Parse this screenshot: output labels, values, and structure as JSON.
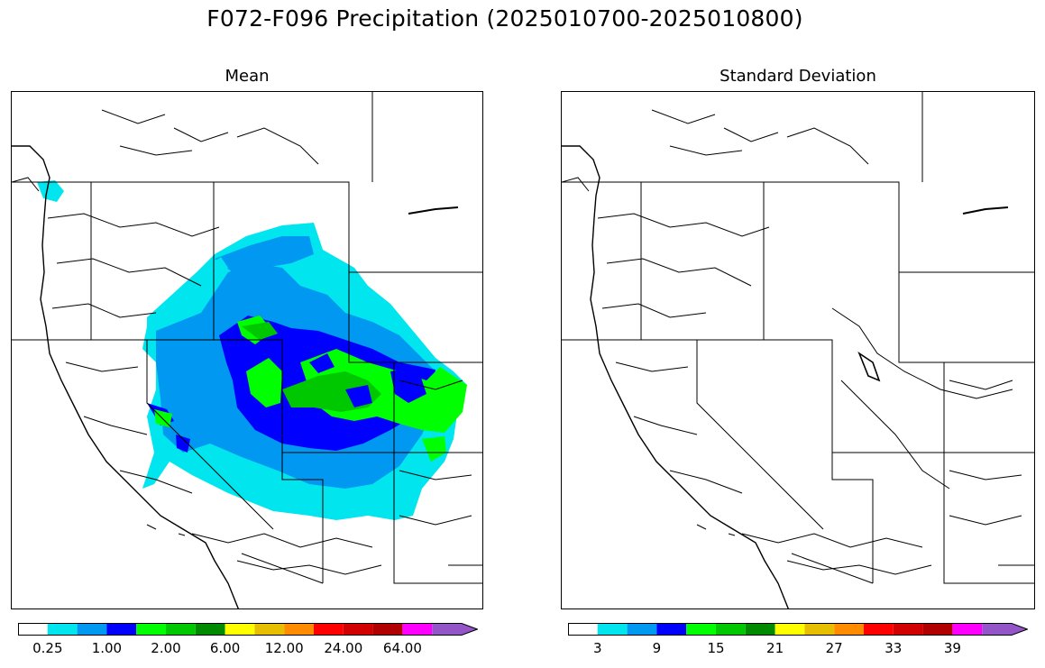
{
  "figure": {
    "title": "F072-F096 Precipitation (2025010700-2025010800)"
  },
  "panels": [
    {
      "id": "mean",
      "title": "Mean",
      "colorbar": {
        "colors": [
          "#ffffff",
          "#00e5ee",
          "#0098f0",
          "#0000ff",
          "#00ff00",
          "#00c800",
          "#008a00",
          "#ffff00",
          "#e6c000",
          "#ff8c00",
          "#ff0000",
          "#d20000",
          "#b00000",
          "#ff00ff",
          "#9455c8"
        ],
        "tick_labels": [
          "0.25",
          "1.00",
          "2.00",
          "6.00",
          "12.00",
          "24.00",
          "64.00"
        ],
        "extend": "max"
      }
    },
    {
      "id": "std",
      "title": "Standard Deviation",
      "colorbar": {
        "colors": [
          "#ffffff",
          "#00e5ee",
          "#0098f0",
          "#0000ff",
          "#00ff00",
          "#00c800",
          "#008a00",
          "#ffff00",
          "#e6c000",
          "#ff8c00",
          "#ff0000",
          "#d20000",
          "#b00000",
          "#ff00ff",
          "#9455c8"
        ],
        "tick_labels": [
          "3",
          "9",
          "15",
          "21",
          "27",
          "33",
          "39"
        ],
        "extend": "max"
      }
    }
  ]
}
